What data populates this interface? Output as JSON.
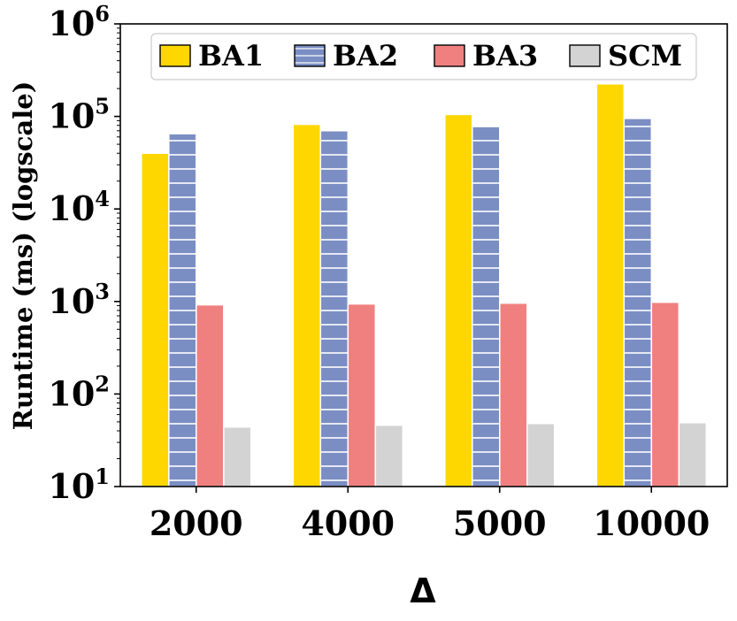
{
  "chart_data": {
    "type": "bar",
    "xlabel": "Δ",
    "ylabel": "Runtime (ms) (logscale)",
    "yscale": "log",
    "ylim": [
      10,
      1000000
    ],
    "yticks": [
      {
        "base": "10",
        "exp": "1"
      },
      {
        "base": "10",
        "exp": "2"
      },
      {
        "base": "10",
        "exp": "3"
      },
      {
        "base": "10",
        "exp": "4"
      },
      {
        "base": "10",
        "exp": "5"
      },
      {
        "base": "10",
        "exp": "6"
      }
    ],
    "categories": [
      "2000",
      "4000",
      "5000",
      "10000"
    ],
    "legend_position": "top-right",
    "series": [
      {
        "name": "BA1",
        "color": "#FFD700",
        "hatch": "none",
        "values": [
          40000,
          82000,
          105000,
          225000
        ]
      },
      {
        "name": "BA2",
        "color": "#7B8EC4",
        "hatch": "horizontal",
        "values": [
          65000,
          70000,
          78000,
          95000
        ]
      },
      {
        "name": "BA3",
        "color": "#F08080",
        "hatch": "none",
        "values": [
          920,
          940,
          960,
          980
        ]
      },
      {
        "name": "SCM",
        "color": "#D3D3D3",
        "hatch": "none",
        "values": [
          44,
          46,
          48,
          49
        ]
      }
    ]
  }
}
